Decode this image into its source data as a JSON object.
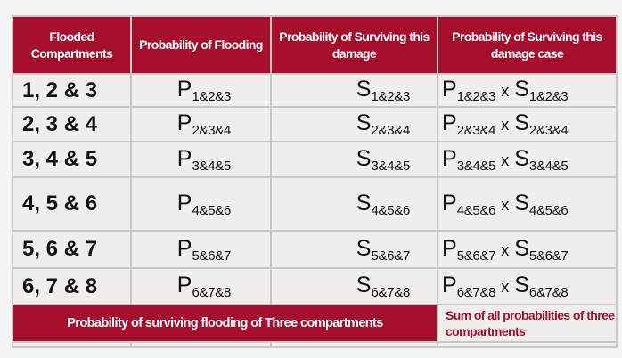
{
  "header": [
    "Flooded Compartments",
    "Probability of Flooding",
    "Probability of Surviving this damage",
    "Probability of Surviving this damage case"
  ],
  "rows": [
    {
      "compartments": "1, 2 & 3",
      "p": "P",
      "p_sub": "1&2&3",
      "s": "S",
      "s_sub": "1&2&3",
      "x": "x"
    },
    {
      "compartments": "2, 3 & 4",
      "p": "P",
      "p_sub": "2&3&4",
      "s": "S",
      "s_sub": "2&3&4",
      "x": "x"
    },
    {
      "compartments": "3, 4 & 5",
      "p": "P",
      "p_sub": "3&4&5",
      "s": "S",
      "s_sub": "3&4&5",
      "x": "x"
    },
    {
      "compartments": "4, 5 & 6",
      "p": "P",
      "p_sub": "4&5&6",
      "s": "S",
      "s_sub": "4&5&6",
      "x": "x"
    },
    {
      "compartments": "5, 6 & 7",
      "p": "P",
      "p_sub": "5&6&7",
      "s": "S",
      "s_sub": "5&6&7",
      "x": "x"
    },
    {
      "compartments": "6, 7 & 8",
      "p": "P",
      "p_sub": "6&7&8",
      "s": "S",
      "s_sub": "6&7&8",
      "x": "x"
    }
  ],
  "footer": {
    "label": "Probability of surviving flooding of Three compartments",
    "sum": "Sum of all probabilities of three compartments"
  },
  "colors": {
    "accent": "#a50f2d",
    "cell": "#efeeec",
    "border": "#c9c8c5"
  }
}
